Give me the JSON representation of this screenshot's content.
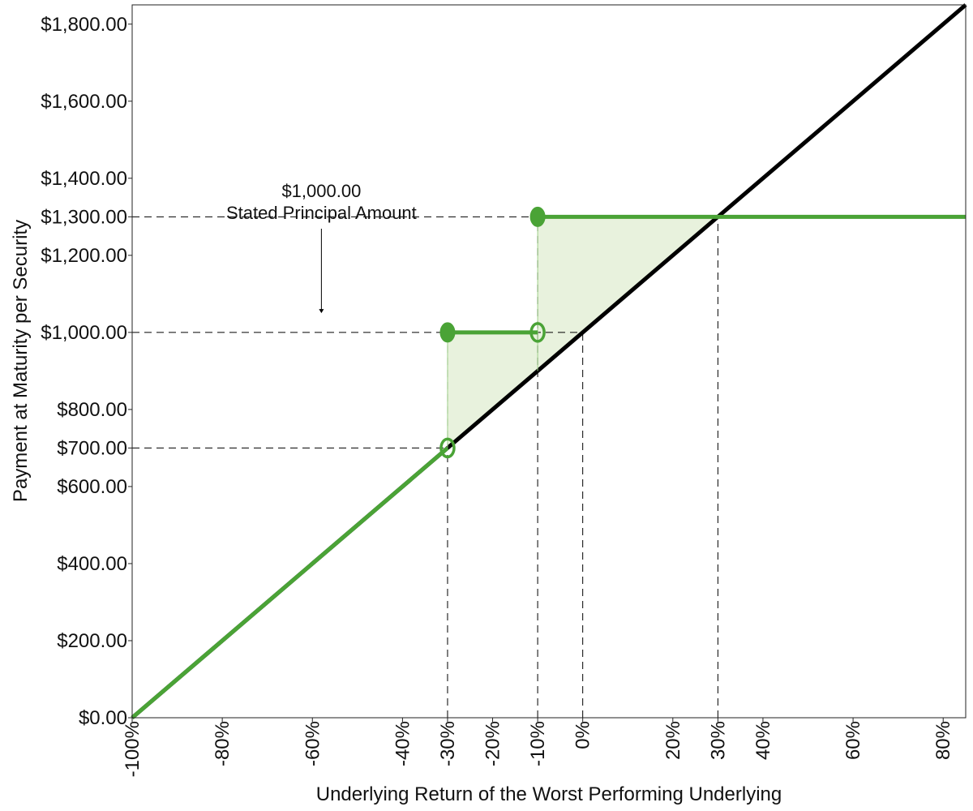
{
  "chart_data": {
    "type": "line",
    "xlabel": "Underlying Return of the Worst Performing Underlying",
    "ylabel": "Payment at Maturity per Security",
    "xlim": [
      -100,
      85
    ],
    "ylim": [
      0,
      1850
    ],
    "x_ticks": [
      -100,
      -80,
      -60,
      -40,
      -30,
      -20,
      -10,
      0,
      20,
      30,
      40,
      60,
      80
    ],
    "x_tick_labels": [
      "-100%",
      "-80%",
      "-60%",
      "-40%",
      "-30%",
      "-20%",
      "-10%",
      "0%",
      "20%",
      "30%",
      "40%",
      "60%",
      "80%"
    ],
    "y_ticks": [
      0,
      200,
      400,
      600,
      700,
      800,
      1000,
      1200,
      1300,
      1400,
      1600,
      1800
    ],
    "y_tick_labels": [
      "$0.00",
      "$200.00",
      "$400.00",
      "$600.00",
      "$700.00",
      "$800.00",
      "$1,000.00",
      "$1,200.00",
      "$1,300.00",
      "$1,400.00",
      "$1,600.00",
      "$1,800.00"
    ],
    "grid": false,
    "series": [
      {
        "color": "#000000",
        "points": [
          [
            -100,
            0
          ],
          [
            85,
            1850
          ]
        ]
      },
      {
        "color": "#4aa336",
        "segments": [
          [
            [
              -100,
              0
            ],
            [
              -30,
              700
            ]
          ],
          [
            [
              -30,
              1000
            ],
            [
              -10,
              1000
            ]
          ],
          [
            [
              -10,
              1300
            ],
            [
              85,
              1300
            ]
          ]
        ],
        "filled_markers": [
          [
            -30,
            1000
          ],
          [
            -10,
            1300
          ]
        ],
        "open_markers": [
          [
            -30,
            700
          ],
          [
            -10,
            1000
          ]
        ]
      }
    ],
    "shaded_regions": [
      {
        "color": "#e8f2dd",
        "points": [
          [
            -30,
            700
          ],
          [
            -30,
            1000
          ],
          [
            -10,
            1000
          ],
          [
            -10,
            900
          ]
        ]
      },
      {
        "color": "#e8f2dd",
        "points": [
          [
            -10,
            900
          ],
          [
            -10,
            1300
          ],
          [
            30,
            1300
          ]
        ]
      }
    ],
    "reference_lines": {
      "horizontal": [
        {
          "y": 1300,
          "x_end": 30
        },
        {
          "y": 1000,
          "x_end": 0
        },
        {
          "y": 700,
          "x_end": -30
        }
      ],
      "vertical": [
        {
          "x": -30,
          "y_top": 1000
        },
        {
          "x": -10,
          "y_top": 1300
        },
        {
          "x": 0,
          "y_top": 1000
        },
        {
          "x": 30,
          "y_top": 1300
        }
      ]
    },
    "annotation": {
      "line1": "$1,000.00",
      "line2": "Stated Principal Amount",
      "x": -58,
      "arrow_to_y": 1050
    }
  }
}
